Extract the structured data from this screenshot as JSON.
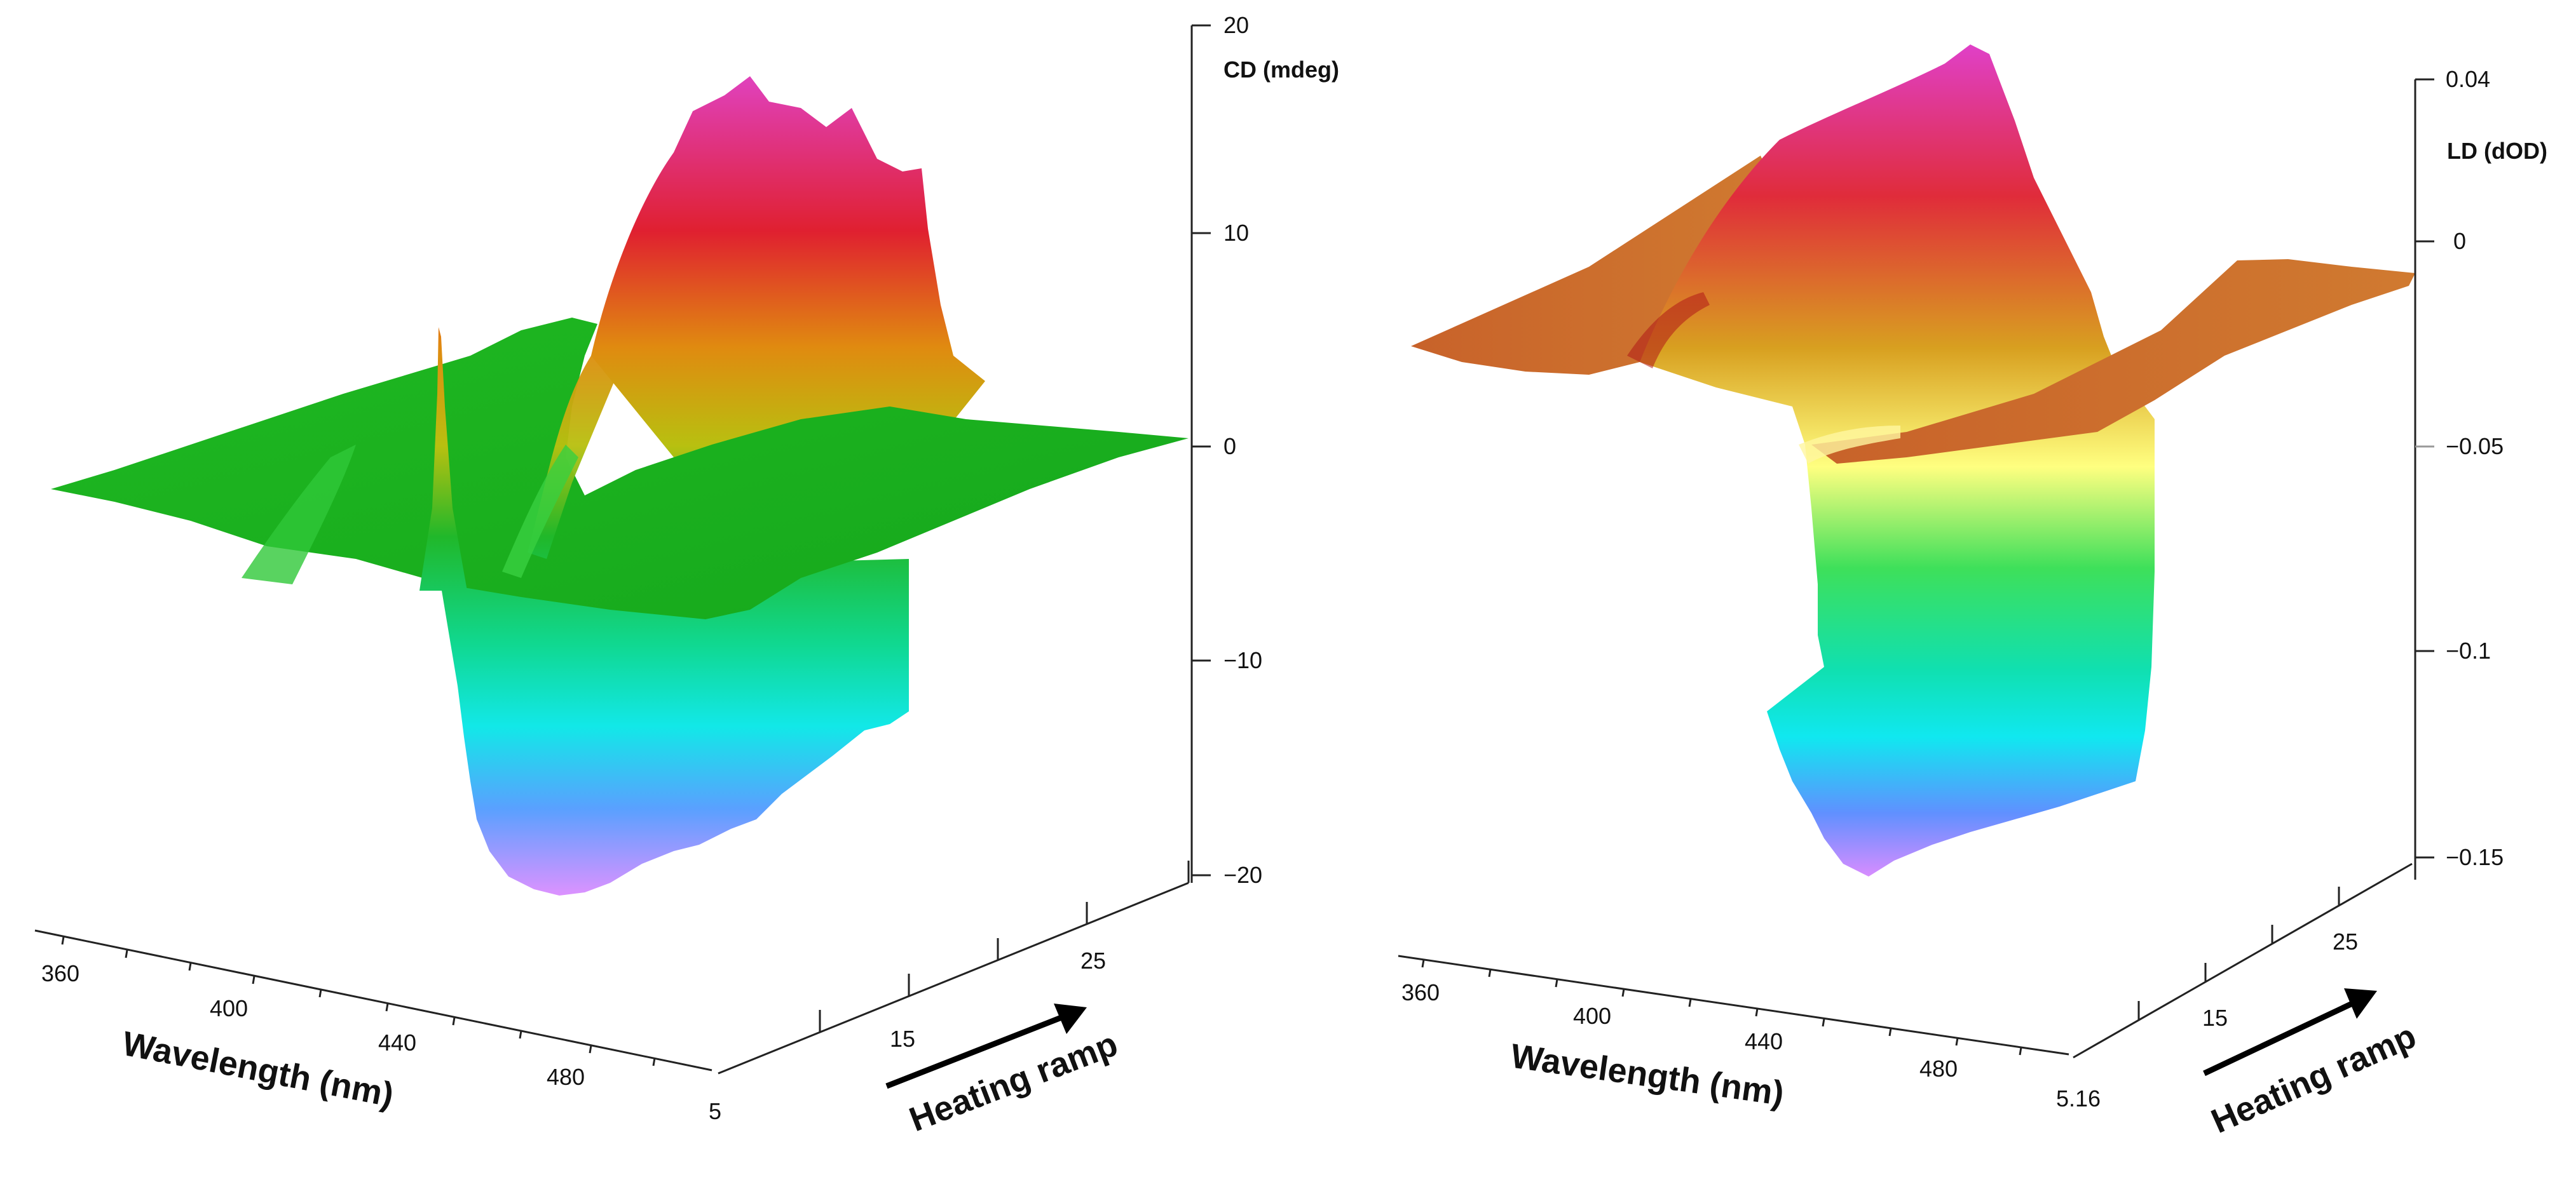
{
  "chart_data": [
    {
      "type": "surface",
      "name": "CD heating surface",
      "title": "",
      "zlabel": "CD (mdeg)",
      "zlim": [
        -20,
        20
      ],
      "z_ticks": [
        "20",
        "10",
        "0",
        "−10",
        "−20"
      ],
      "xlabel": "Wavelength (nm)",
      "x_ticks": [
        "360",
        "400",
        "440",
        "480"
      ],
      "ylabel": "Heating ramp",
      "y_ticks": [
        "5",
        "15",
        "25"
      ],
      "features": {
        "positive_peak_nm": 455,
        "positive_peak_value": 16,
        "negative_peak_nm": 430,
        "negative_peak_value": -19,
        "sharp_spike_nm": 400,
        "sharp_spike_value": 5
      }
    },
    {
      "type": "surface",
      "name": "LD heating surface",
      "title": "",
      "zlabel": "LD (dOD)",
      "zlim": [
        -0.15,
        0.04
      ],
      "z_ticks": [
        "0.04",
        "0",
        "−0.05",
        "−0.1",
        "−0.15"
      ],
      "xlabel": "Wavelength (nm)",
      "x_ticks": [
        "360",
        "400",
        "440",
        "480"
      ],
      "ylabel": "Heating ramp",
      "y_ticks": [
        "5.16",
        "15",
        "25"
      ],
      "features": {
        "positive_peak_nm": 430,
        "positive_peak_value": 0.03,
        "negative_peak_nm": 440,
        "negative_peak_value": -0.15
      }
    }
  ]
}
